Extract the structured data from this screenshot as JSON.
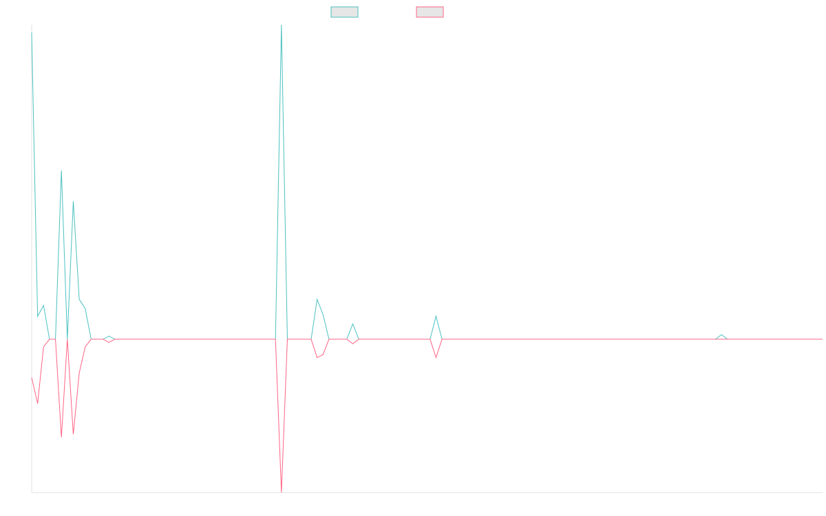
{
  "chart_data": {
    "type": "line",
    "title": "",
    "xlabel": "",
    "ylabel": "",
    "legend_position": "top-center",
    "grid": false,
    "ylim": [
      -1.0,
      2.05
    ],
    "baseline": 0,
    "x_count": 134,
    "series": [
      {
        "name": "",
        "color": "#4bc0c0",
        "fill_color": "#e6e6e6",
        "values": [
          2.0,
          0.0,
          0.0,
          0.0,
          0.0,
          0.0,
          0.0,
          0.0,
          0.0,
          0.0,
          0.0,
          0.0,
          0.0,
          0.0,
          0.0,
          0.0,
          0.0,
          0.0,
          0.0,
          0.0,
          0.0,
          0.0,
          0.0,
          0.0,
          0.0,
          0.0,
          0.0,
          0.0,
          0.0,
          0.0,
          0.0,
          0.0,
          0.0,
          0.0,
          0.0,
          0.0,
          0.0,
          0.0,
          0.0,
          0.0,
          0.0,
          0.0,
          0.0,
          0.0,
          0.0,
          0.0,
          0.0,
          0.0,
          0.0,
          0.0,
          0.0,
          0.0,
          0.0,
          0.0,
          0.0,
          0.0,
          0.0,
          0.0,
          0.0,
          0.0,
          0.0,
          0.0,
          0.0,
          0.0,
          0.0,
          0.0,
          0.0,
          0.0,
          0.0,
          0.0,
          0.0,
          0.0,
          0.0,
          0.0,
          0.0,
          0.0,
          0.0,
          0.0,
          0.0,
          0.0,
          0.0,
          0.0,
          0.0,
          0.0,
          0.0,
          0.0,
          0.0,
          0.0,
          0.0,
          0.0,
          0.0,
          0.0,
          0.0,
          0.0,
          0.0,
          0.0,
          0.0,
          0.0,
          0.0,
          0.0,
          0.0,
          0.0,
          0.0,
          0.0,
          0.0,
          0.0,
          0.0,
          0.0,
          0.0,
          0.0,
          0.0,
          0.0,
          0.0,
          0.0,
          0.0,
          0.0,
          0.0,
          0.0,
          0.0,
          0.0,
          0.0,
          0.0,
          0.0,
          0.0,
          0.0,
          0.0,
          0.0,
          0.0,
          0.0,
          0.0,
          0.0,
          0.0,
          0.0,
          0.0
        ],
        "spikes": [
          [
            0,
            2.0
          ],
          [
            1,
            0.15
          ],
          [
            2,
            0.22
          ],
          [
            3,
            0.0
          ],
          [
            4,
            0.0
          ],
          [
            5,
            1.1
          ],
          [
            6,
            0.0
          ],
          [
            7,
            0.9
          ],
          [
            8,
            0.26
          ],
          [
            9,
            0.2
          ],
          [
            10,
            0.0
          ],
          [
            13,
            0.02
          ],
          [
            42,
            2.05
          ],
          [
            48,
            0.26
          ],
          [
            49,
            0.16
          ],
          [
            50,
            0.0
          ],
          [
            54,
            0.1
          ],
          [
            68,
            0.15
          ],
          [
            116,
            0.03
          ]
        ]
      },
      {
        "name": "",
        "color": "#ff6384",
        "fill_color": "#e6e6e6",
        "spikes": [
          [
            0,
            -0.25
          ],
          [
            1,
            -0.42
          ],
          [
            2,
            -0.05
          ],
          [
            3,
            0.0
          ],
          [
            4,
            0.0
          ],
          [
            5,
            -0.64
          ],
          [
            6,
            0.0
          ],
          [
            7,
            -0.62
          ],
          [
            8,
            -0.22
          ],
          [
            9,
            -0.05
          ],
          [
            10,
            0.0
          ],
          [
            13,
            -0.02
          ],
          [
            42,
            -1.0
          ],
          [
            48,
            -0.12
          ],
          [
            49,
            -0.1
          ],
          [
            50,
            0.0
          ],
          [
            54,
            -0.03
          ],
          [
            68,
            -0.12
          ],
          [
            116,
            0.0
          ]
        ]
      }
    ]
  }
}
